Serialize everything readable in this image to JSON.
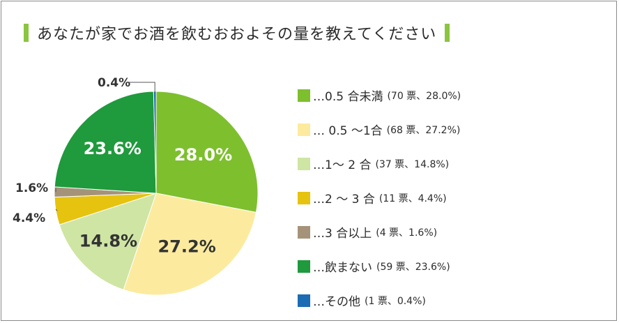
{
  "title": "あなたが家でお酒を飲むおおよその量を教えてください",
  "colors": {
    "title_accent": "#8bc53f",
    "border": "#8a8a8a"
  },
  "chart_data": {
    "type": "pie",
    "title": "あなたが家でお酒を飲むおおよその量を教えてください",
    "slices": [
      {
        "name": "…0.5 合未満",
        "detail": "(70 票、28.0%)",
        "votes": 70,
        "percent": 28.0,
        "label": "28.0%",
        "color": "#7ebf2e",
        "label_color": "#ffffff"
      },
      {
        "name": "… 0.5 〜1合",
        "detail": "(68 票、27.2%)",
        "votes": 68,
        "percent": 27.2,
        "label": "27.2%",
        "color": "#fceb9e",
        "label_color": "#333333"
      },
      {
        "name": "…1〜 2 合",
        "detail": "(37 票、14.8%)",
        "votes": 37,
        "percent": 14.8,
        "label": "14.8%",
        "color": "#cfe5a4",
        "label_color": "#333333"
      },
      {
        "name": "…2 〜 3 合",
        "detail": "(11 票、4.4%)",
        "votes": 11,
        "percent": 4.4,
        "label": "4.4%",
        "color": "#e6c30f",
        "label_color": "#333333"
      },
      {
        "name": "…3 合以上",
        "detail": "(4 票、1.6%)",
        "votes": 4,
        "percent": 1.6,
        "label": "1.6%",
        "color": "#a59379",
        "label_color": "#333333"
      },
      {
        "name": "…飲まない",
        "detail": "(59 票、23.6%)",
        "votes": 59,
        "percent": 23.6,
        "label": "23.6%",
        "color": "#1f9a3c",
        "label_color": "#ffffff"
      },
      {
        "name": "…その他",
        "detail": "(1 票、0.4%)",
        "votes": 1,
        "percent": 0.4,
        "label": "0.4%",
        "color": "#1b6cb3",
        "label_color": "#333333"
      }
    ]
  }
}
